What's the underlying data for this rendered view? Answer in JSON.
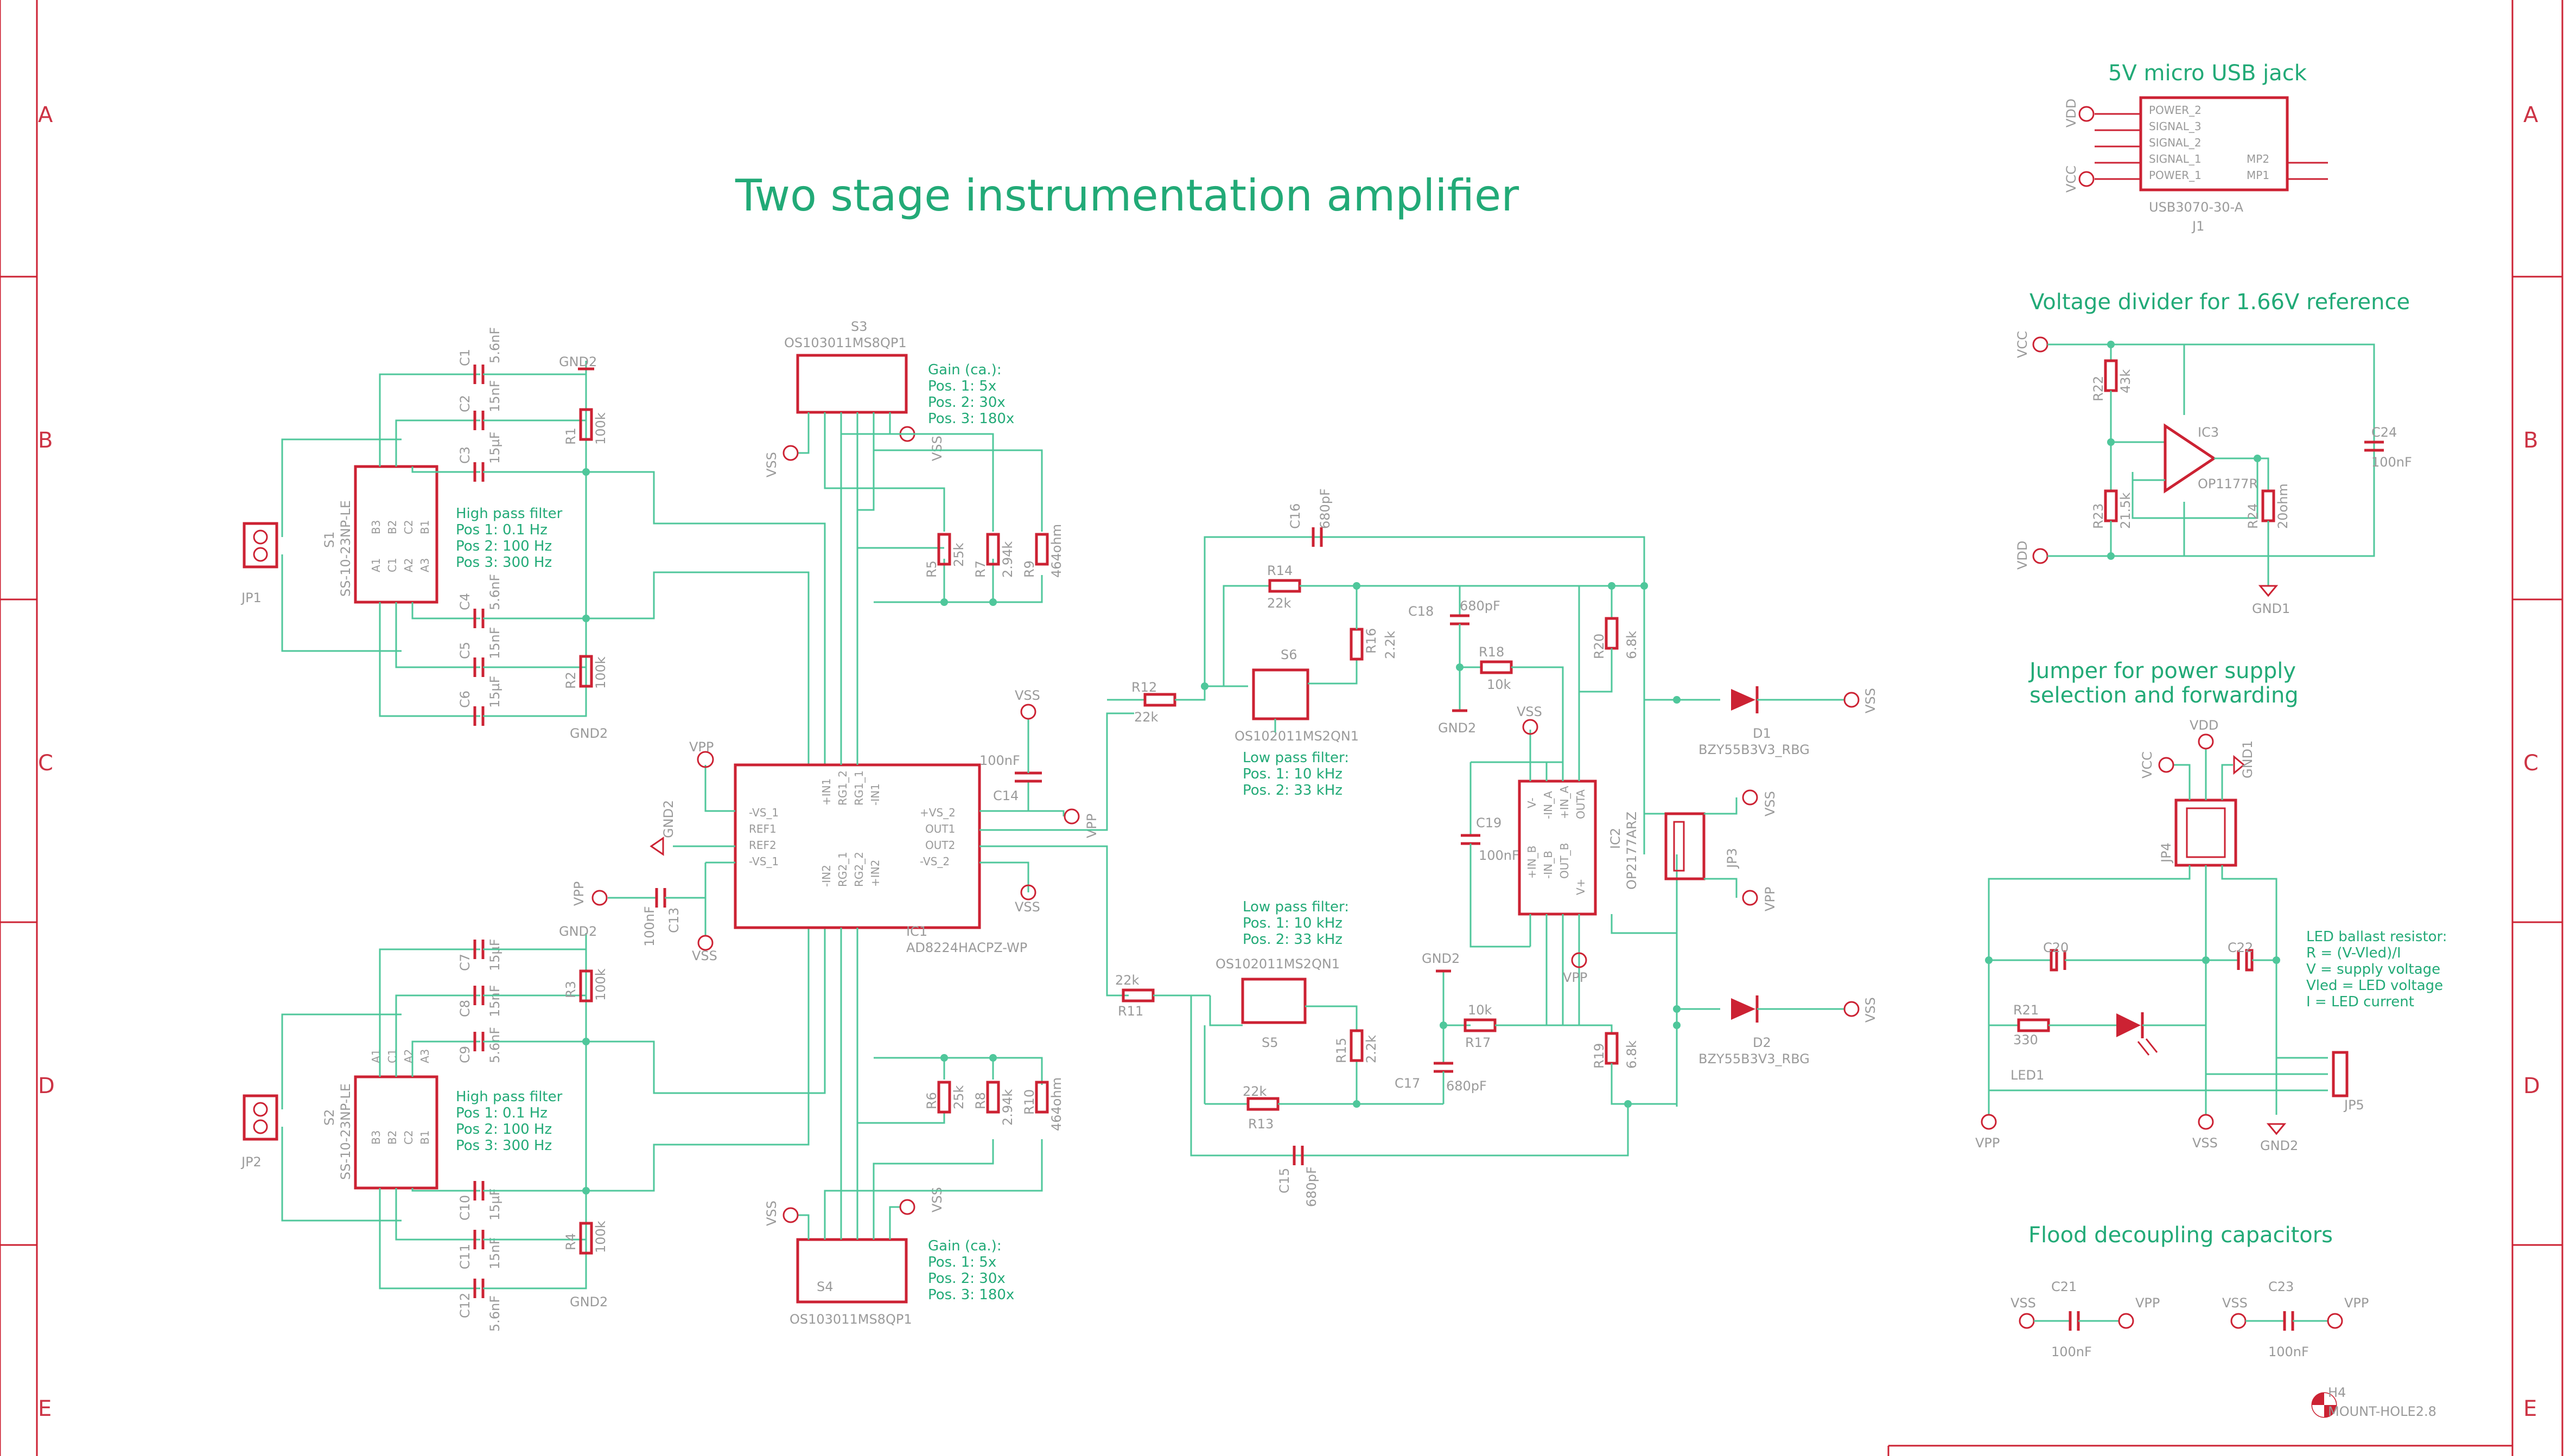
{
  "title": "Two stage instrumentation amplifier",
  "frame": {
    "rows": [
      "A",
      "B",
      "C",
      "D",
      "E"
    ]
  },
  "sections": {
    "usb": "5V micro USB jack",
    "divider": "Voltage divider for 1.66V reference",
    "jumper": "Jumper for power supply selection and forwarding",
    "decoupling": "Flood decoupling capacitors"
  },
  "notes": {
    "hp_filter": [
      "High pass filter",
      "Pos 1: 0.1 Hz",
      "Pos 2: 100 Hz",
      "Pos 3: 300 Hz"
    ],
    "gain": [
      "Gain (ca.):",
      "Pos. 1: 5x",
      "Pos. 2: 30x",
      "Pos. 3: 180x"
    ],
    "lp_filter": [
      "Low pass filter:",
      "Pos. 1: 10 kHz",
      "Pos. 2: 33 kHz"
    ],
    "led_ballast": [
      "LED ballast resistor:",
      "R = (V-Vled)/I",
      "V = supply voltage",
      "Vled = LED voltage",
      "I = LED current"
    ]
  },
  "components": {
    "ic1": {
      "ref": "IC1",
      "value": "AD8224HACPZ-WP",
      "left_pins": [
        "-VS_1",
        "REF1",
        "REF2",
        "-VS_1"
      ],
      "right_pins": [
        "+VS_2",
        "OUT1",
        "OUT2",
        "-VS_2"
      ],
      "top_pins": [
        "+IN1",
        "RG1_2",
        "RG1_1",
        "-IN1"
      ],
      "bottom_pins": [
        "-IN2",
        "RG2_1",
        "RG2_2",
        "+IN2"
      ]
    },
    "ic2": {
      "ref": "IC2",
      "value": "OP2177ARZ",
      "pins": [
        "V-",
        "-IN_A",
        "+IN_A",
        "OUTA",
        "+IN_B",
        "-IN_B",
        "OUT_B",
        "V+"
      ]
    },
    "ic3": {
      "ref": "IC3",
      "value": "OP1177R"
    },
    "j1": {
      "ref": "J1",
      "value": "USB3070-30-A",
      "pins": [
        "POWER_2",
        "SIGNAL_3",
        "SIGNAL_2",
        "SIGNAL_1",
        "POWER_1"
      ],
      "mp": [
        "MP2",
        "MP1"
      ]
    },
    "s1": {
      "ref": "S1",
      "value": "SS-10-23NP-LE",
      "pins": [
        "B3",
        "B2",
        "C2",
        "B1",
        "A1",
        "C1",
        "A2",
        "A3"
      ]
    },
    "s2": {
      "ref": "S2",
      "value": "SS-10-23NP-LE",
      "pins": [
        "A1",
        "C1",
        "A2",
        "A3",
        "B3",
        "B2",
        "C2",
        "B1"
      ]
    },
    "s3": {
      "ref": "S3",
      "value": "OS103011MS8QP1"
    },
    "s4": {
      "ref": "S4",
      "value": "OS103011MS8QP1"
    },
    "s5": {
      "ref": "S5",
      "value": "OS102011MS2QN1"
    },
    "s6": {
      "ref": "S6",
      "value": "OS102011MS2QN1"
    },
    "d1": {
      "ref": "D1",
      "value": "BZY55B3V3_RBG"
    },
    "d2": {
      "ref": "D2",
      "value": "BZY55B3V3_RBG"
    },
    "led1": {
      "ref": "LED1"
    },
    "h4": {
      "ref": "H4",
      "value": "MOUNT-HOLE2.8"
    },
    "jp1": "JP1",
    "jp2": "JP2",
    "jp3": "JP3",
    "jp4": "JP4",
    "jp5": "JP5"
  },
  "resistors": [
    {
      "ref": "R1",
      "value": "100k"
    },
    {
      "ref": "R2",
      "value": "100k"
    },
    {
      "ref": "R3",
      "value": "100k"
    },
    {
      "ref": "R4",
      "value": "100k"
    },
    {
      "ref": "R5",
      "value": "25k"
    },
    {
      "ref": "R6",
      "value": "25k"
    },
    {
      "ref": "R7",
      "value": "2.94k"
    },
    {
      "ref": "R8",
      "value": "2.94k"
    },
    {
      "ref": "R9",
      "value": "464ohm"
    },
    {
      "ref": "R10",
      "value": "464ohm"
    },
    {
      "ref": "R11",
      "value": "22k"
    },
    {
      "ref": "R12",
      "value": "22k"
    },
    {
      "ref": "R13",
      "value": "22k"
    },
    {
      "ref": "R14",
      "value": "22k"
    },
    {
      "ref": "R15",
      "value": "2.2k"
    },
    {
      "ref": "R16",
      "value": "2.2k"
    },
    {
      "ref": "R17",
      "value": "10k"
    },
    {
      "ref": "R18",
      "value": "10k"
    },
    {
      "ref": "R19",
      "value": "6.8k"
    },
    {
      "ref": "R20",
      "value": "6.8k"
    },
    {
      "ref": "R21",
      "value": "330"
    },
    {
      "ref": "R22",
      "value": "43k"
    },
    {
      "ref": "R23",
      "value": "21.5k"
    },
    {
      "ref": "R24",
      "value": "20ohm"
    }
  ],
  "capacitors": [
    {
      "ref": "C1",
      "value": "5.6nF"
    },
    {
      "ref": "C2",
      "value": "15nF"
    },
    {
      "ref": "C3",
      "value": "15µF"
    },
    {
      "ref": "C4",
      "value": "5.6nF"
    },
    {
      "ref": "C5",
      "value": "15nF"
    },
    {
      "ref": "C6",
      "value": "15µF"
    },
    {
      "ref": "C7",
      "value": "15µF"
    },
    {
      "ref": "C8",
      "value": "15nF"
    },
    {
      "ref": "C9",
      "value": "5.6nF"
    },
    {
      "ref": "C10",
      "value": "15µF"
    },
    {
      "ref": "C11",
      "value": "15nF"
    },
    {
      "ref": "C12",
      "value": "5.6nF"
    },
    {
      "ref": "C13",
      "value": "100nF"
    },
    {
      "ref": "C14",
      "value": "100nF"
    },
    {
      "ref": "C15",
      "value": "680pF"
    },
    {
      "ref": "C16",
      "value": "680pF"
    },
    {
      "ref": "C17",
      "value": "680pF"
    },
    {
      "ref": "C18",
      "value": "680pF"
    },
    {
      "ref": "C19",
      "value": "100nF"
    },
    {
      "ref": "C20",
      "value": ""
    },
    {
      "ref": "C21",
      "value": "100nF"
    },
    {
      "ref": "C22",
      "value": ""
    },
    {
      "ref": "C23",
      "value": "100nF"
    },
    {
      "ref": "C24",
      "value": "100nF"
    }
  ],
  "nets": {
    "gnd2": "GND2",
    "gnd1": "GND1",
    "vss": "VSS",
    "vpp": "VPP",
    "vdd": "VDD",
    "vcc": "VCC"
  }
}
